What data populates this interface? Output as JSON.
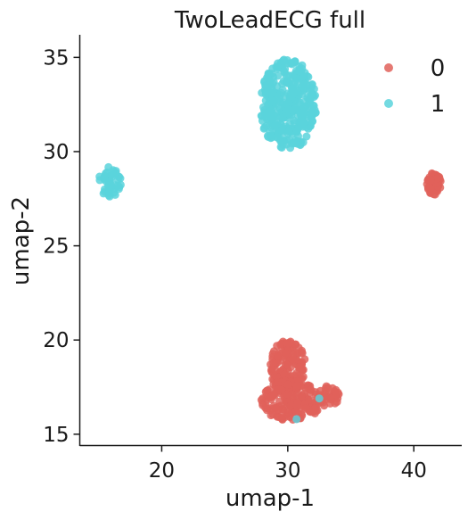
{
  "chart_data": {
    "type": "scatter",
    "title": "TwoLeadECG full",
    "xlabel": "umap-1",
    "ylabel": "umap-2",
    "xlim": [
      13.5,
      43.8
    ],
    "ylim": [
      14.4,
      36.2
    ],
    "xticks": [
      20,
      30,
      40
    ],
    "yticks": [
      15,
      20,
      25,
      30,
      35
    ],
    "grid": false,
    "legend": "top-right",
    "series": [
      {
        "name": "0",
        "color": "#e0625a",
        "clusters": [
          {
            "cx": 30.0,
            "cy": 18.6,
            "rx": 1.4,
            "ry": 1.4,
            "n": 170
          },
          {
            "cx": 30.3,
            "cy": 16.8,
            "rx": 2.4,
            "ry": 1.1,
            "n": 170
          },
          {
            "cx": 33.2,
            "cy": 17.0,
            "rx": 0.9,
            "ry": 0.6,
            "n": 40
          },
          {
            "cx": 41.6,
            "cy": 28.3,
            "rx": 0.6,
            "ry": 0.6,
            "n": 60
          }
        ]
      },
      {
        "name": "1",
        "color": "#5ad4dc",
        "clusters": [
          {
            "cx": 30.0,
            "cy": 32.5,
            "rx": 2.3,
            "ry": 2.4,
            "n": 360
          },
          {
            "cx": 15.9,
            "cy": 28.4,
            "rx": 0.9,
            "ry": 0.8,
            "n": 45
          }
        ],
        "points": [
          {
            "x": 32.5,
            "y": 16.9
          },
          {
            "x": 30.7,
            "y": 15.8
          }
        ]
      }
    ]
  }
}
